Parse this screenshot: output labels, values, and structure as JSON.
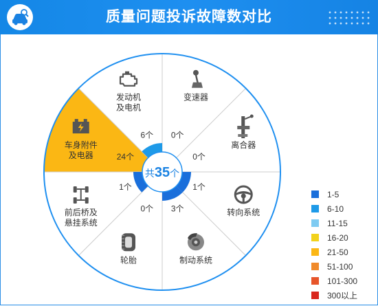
{
  "header": {
    "title": "质量问题投诉故障数对比"
  },
  "chart_data": {
    "type": "radial",
    "total": {
      "prefix": "共",
      "value": "35",
      "suffix": "个"
    },
    "categories": [
      {
        "name": "变速器",
        "lines": [
          "变速器"
        ],
        "value": 0,
        "label": "0个",
        "icon": "gear-shift-icon"
      },
      {
        "name": "离合器",
        "lines": [
          "离合器"
        ],
        "value": 0,
        "label": "0个",
        "icon": "clutch-icon"
      },
      {
        "name": "转向系统",
        "lines": [
          "转向系统"
        ],
        "value": 1,
        "label": "1个",
        "icon": "steering-wheel-icon"
      },
      {
        "name": "制动系统",
        "lines": [
          "制动系统"
        ],
        "value": 3,
        "label": "3个",
        "icon": "brake-disc-icon"
      },
      {
        "name": "轮胎",
        "lines": [
          "轮胎"
        ],
        "value": 0,
        "label": "0个",
        "icon": "tire-icon"
      },
      {
        "name": "前后桥及悬挂系统",
        "lines": [
          "前后桥及",
          "悬挂系统"
        ],
        "value": 1,
        "label": "1个",
        "icon": "axle-icon"
      },
      {
        "name": "车身附件及电器",
        "lines": [
          "车身附件",
          "及电器"
        ],
        "value": 24,
        "label": "24个",
        "icon": "battery-icon"
      },
      {
        "name": "发动机及电机",
        "lines": [
          "发动机",
          "及电机"
        ],
        "value": 6,
        "label": "6个",
        "icon": "engine-icon"
      }
    ],
    "legend": [
      {
        "label": "1-5",
        "color": "#1a6fdb"
      },
      {
        "label": "6-10",
        "color": "#1e9ae8"
      },
      {
        "label": "11-15",
        "color": "#7ecbf2"
      },
      {
        "label": "16-20",
        "color": "#f2d21c"
      },
      {
        "label": "21-50",
        "color": "#fbb714"
      },
      {
        "label": "51-100",
        "color": "#f08a2a"
      },
      {
        "label": "101-300",
        "color": "#e7552a"
      },
      {
        "label": "300以上",
        "color": "#d9261c"
      }
    ]
  }
}
